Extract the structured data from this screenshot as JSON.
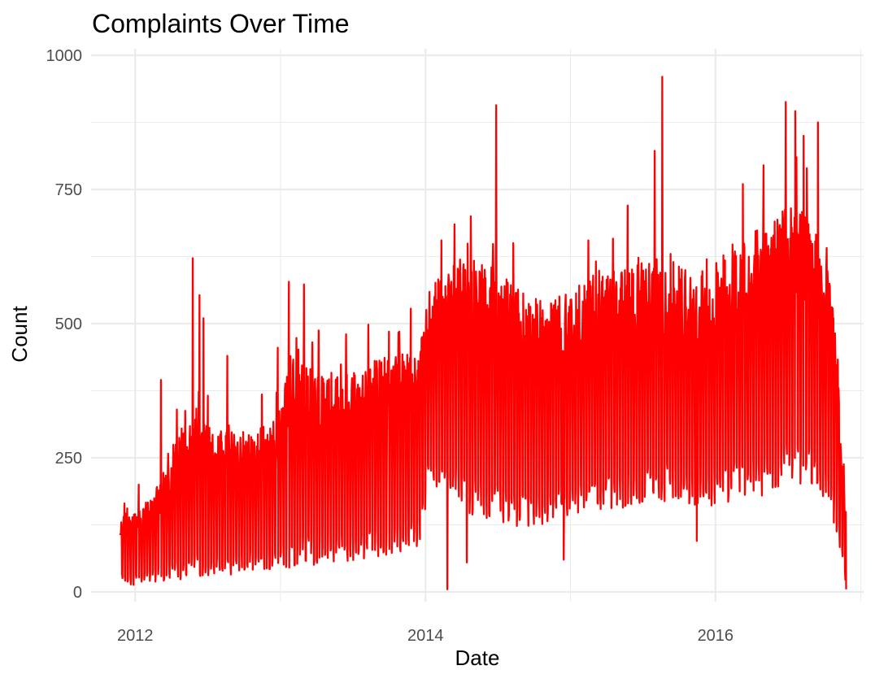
{
  "chart_data": {
    "type": "line",
    "title": "Complaints Over Time",
    "xlabel": "Date",
    "ylabel": "Count",
    "xlim": [
      "2011-09-12",
      "2017-01-08"
    ],
    "ylim": [
      0,
      1000
    ],
    "x_ticks": [
      {
        "date": "2012-01-01",
        "label": "2012"
      },
      {
        "date": "2014-01-01",
        "label": "2014"
      },
      {
        "date": "2016-01-01",
        "label": "2016"
      }
    ],
    "y_ticks": [
      0,
      250,
      500,
      750,
      1000
    ],
    "y_tick_labels": [
      "0",
      "250",
      "500",
      "750",
      "1000"
    ],
    "grid": true,
    "series": [
      {
        "color": "#ff0000",
        "x_start": "2011-11-24",
        "x_end": "2016-11-25",
        "frequency": "daily",
        "envelope": [
          {
            "date": "2011-11-24",
            "low": 25,
            "high": 130
          },
          {
            "date": "2011-12-10",
            "low": 10,
            "high": 165
          },
          {
            "date": "2012-01-15",
            "low": 15,
            "high": 150
          },
          {
            "date": "2012-03-01",
            "low": 20,
            "high": 210
          },
          {
            "date": "2012-04-15",
            "low": 20,
            "high": 300
          },
          {
            "date": "2012-06-01",
            "low": 25,
            "high": 320
          },
          {
            "date": "2012-08-01",
            "low": 30,
            "high": 300
          },
          {
            "date": "2012-10-01",
            "low": 35,
            "high": 300
          },
          {
            "date": "2012-12-15",
            "low": 40,
            "high": 320
          },
          {
            "date": "2013-02-01",
            "low": 45,
            "high": 440
          },
          {
            "date": "2013-04-01",
            "low": 50,
            "high": 410
          },
          {
            "date": "2013-06-01",
            "low": 55,
            "high": 400
          },
          {
            "date": "2013-08-01",
            "low": 60,
            "high": 420
          },
          {
            "date": "2013-10-01",
            "low": 70,
            "high": 440
          },
          {
            "date": "2013-12-15",
            "low": 80,
            "high": 450
          },
          {
            "date": "2014-01-10",
            "low": 200,
            "high": 560
          },
          {
            "date": "2014-03-01",
            "low": 180,
            "high": 620
          },
          {
            "date": "2014-05-01",
            "low": 140,
            "high": 620
          },
          {
            "date": "2014-07-01",
            "low": 130,
            "high": 600
          },
          {
            "date": "2014-09-01",
            "low": 120,
            "high": 560
          },
          {
            "date": "2014-11-01",
            "low": 120,
            "high": 540
          },
          {
            "date": "2015-01-01",
            "low": 140,
            "high": 560
          },
          {
            "date": "2015-03-01",
            "low": 150,
            "high": 600
          },
          {
            "date": "2015-05-01",
            "low": 150,
            "high": 600
          },
          {
            "date": "2015-07-01",
            "low": 160,
            "high": 620
          },
          {
            "date": "2015-09-01",
            "low": 170,
            "high": 640
          },
          {
            "date": "2015-11-01",
            "low": 160,
            "high": 600
          },
          {
            "date": "2016-01-01",
            "low": 160,
            "high": 620
          },
          {
            "date": "2016-03-01",
            "low": 170,
            "high": 660
          },
          {
            "date": "2016-05-01",
            "low": 180,
            "high": 680
          },
          {
            "date": "2016-07-01",
            "low": 200,
            "high": 720
          },
          {
            "date": "2016-09-01",
            "low": 190,
            "high": 700
          },
          {
            "date": "2016-10-10",
            "low": 160,
            "high": 620
          },
          {
            "date": "2016-11-01",
            "low": 110,
            "high": 480
          },
          {
            "date": "2016-11-25",
            "low": 5,
            "high": 140
          }
        ],
        "peaks": [
          {
            "date": "2011-12-05",
            "value": 165
          },
          {
            "date": "2012-01-10",
            "value": 200
          },
          {
            "date": "2012-03-06",
            "value": 395
          },
          {
            "date": "2012-04-15",
            "value": 340
          },
          {
            "date": "2012-05-25",
            "value": 622
          },
          {
            "date": "2012-06-11",
            "value": 553
          },
          {
            "date": "2012-06-21",
            "value": 510
          },
          {
            "date": "2012-08-20",
            "value": 440
          },
          {
            "date": "2012-11-15",
            "value": 368
          },
          {
            "date": "2012-12-25",
            "value": 455
          },
          {
            "date": "2013-01-22",
            "value": 578
          },
          {
            "date": "2013-03-01",
            "value": 573
          },
          {
            "date": "2013-06-15",
            "value": 480
          },
          {
            "date": "2013-08-10",
            "value": 498
          },
          {
            "date": "2013-10-01",
            "value": 485
          },
          {
            "date": "2013-11-25",
            "value": 528
          },
          {
            "date": "2014-02-10",
            "value": 655
          },
          {
            "date": "2014-03-15",
            "value": 685
          },
          {
            "date": "2014-04-25",
            "value": 700
          },
          {
            "date": "2014-06-28",
            "value": 907
          },
          {
            "date": "2014-08-10",
            "value": 650
          },
          {
            "date": "2015-02-15",
            "value": 655
          },
          {
            "date": "2015-05-25",
            "value": 720
          },
          {
            "date": "2015-08-01",
            "value": 822
          },
          {
            "date": "2015-08-20",
            "value": 960
          },
          {
            "date": "2016-03-10",
            "value": 760
          },
          {
            "date": "2016-05-01",
            "value": 795
          },
          {
            "date": "2016-06-26",
            "value": 913
          },
          {
            "date": "2016-07-20",
            "value": 896
          },
          {
            "date": "2016-08-10",
            "value": 850
          },
          {
            "date": "2016-09-15",
            "value": 875
          }
        ],
        "dips": [
          {
            "date": "2014-02-25",
            "value": 5
          },
          {
            "date": "2014-04-15",
            "value": 55
          },
          {
            "date": "2014-12-15",
            "value": 60
          },
          {
            "date": "2015-11-15",
            "value": 95
          },
          {
            "date": "2016-11-25",
            "value": 5
          }
        ]
      }
    ]
  }
}
